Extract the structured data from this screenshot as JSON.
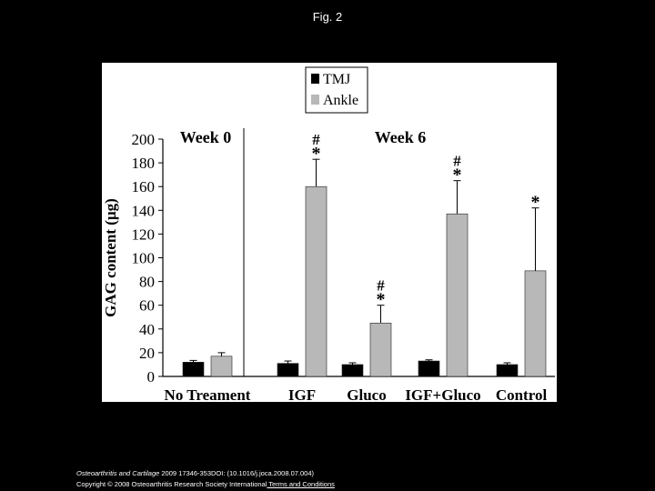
{
  "page": {
    "title": "Fig. 2"
  },
  "chart_data": {
    "type": "bar",
    "ylabel": "GAG content (µg)",
    "ylim": [
      0,
      200
    ],
    "yticks": [
      0,
      20,
      40,
      60,
      80,
      100,
      120,
      140,
      160,
      180,
      200
    ],
    "categories": [
      "No Treament",
      "IGF",
      "Gluco",
      "IGF+Gluco",
      "Control"
    ],
    "series": [
      {
        "name": "TMJ",
        "color": "#000000",
        "values": [
          12,
          11,
          10,
          13,
          10
        ],
        "errors": [
          1.5,
          2,
          1.5,
          1,
          1.5
        ]
      },
      {
        "name": "Ankle",
        "color": "#b8b8b8",
        "values": [
          17,
          160,
          45,
          137,
          89
        ],
        "errors": [
          3,
          23,
          15,
          28,
          53
        ]
      }
    ],
    "annotations": [
      {
        "category": "IGF",
        "text": [
          "#",
          "*"
        ]
      },
      {
        "category": "Gluco",
        "text": [
          "#",
          "*"
        ]
      },
      {
        "category": "IGF+Gluco",
        "text": [
          "#",
          "*"
        ]
      },
      {
        "category": "Control",
        "text": [
          "*"
        ]
      }
    ],
    "group_labels": [
      "Week 0",
      "Week 6"
    ],
    "legend_position": "top-center"
  },
  "footer": {
    "journal": "Osteoarthritis and Cartilage",
    "citation": " 2009 17346-353DOI: (10.1016/j.joca.2008.07.004)",
    "copyright": "Copyright © 2008 Osteoarthritis Research Society International",
    "terms_link": " Terms and Conditions"
  }
}
